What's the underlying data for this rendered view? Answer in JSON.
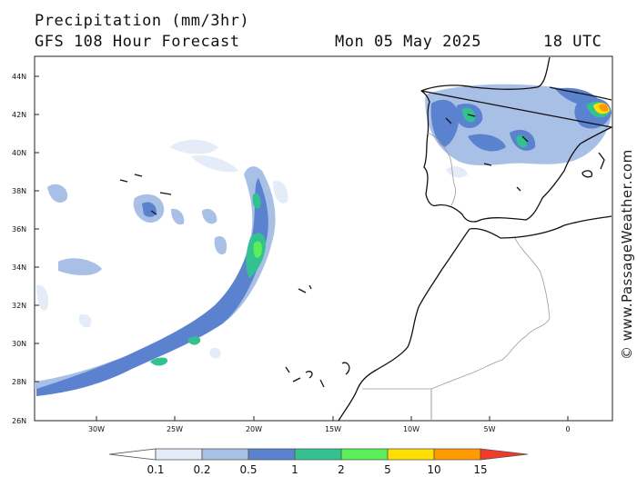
{
  "header": {
    "title": "Precipitation (mm/3hr)",
    "subtitle": "GFS 108 Hour Forecast",
    "date": "Mon 05 May 2025",
    "time": "18 UTC"
  },
  "credit": "© www.PassageWeather.com",
  "lat_labels": [
    "44N",
    "42N",
    "40N",
    "38N",
    "36N",
    "34N",
    "32N",
    "30N",
    "28N",
    "26N"
  ],
  "lon_labels": [
    "30W",
    "25W",
    "20W",
    "15W",
    "10W",
    "5W",
    "0"
  ],
  "colorbar": {
    "labels": [
      "0.1",
      "0.2",
      "0.5",
      "1",
      "2",
      "5",
      "10",
      "15"
    ],
    "colors": [
      "#ffffff",
      "#e4ecf8",
      "#a9c0e6",
      "#5b82cf",
      "#33c18f",
      "#5cee58",
      "#ffe000",
      "#ff9b00",
      "#f03a2a"
    ]
  },
  "precip_colors": {
    "very_light": "#e4ecf8",
    "light": "#a9c0e6",
    "moderate": "#5b82cf",
    "heavy": "#33c18f",
    "very_heavy": "#5cee58",
    "intense": "#ffe000",
    "extreme": "#ff9b00"
  }
}
